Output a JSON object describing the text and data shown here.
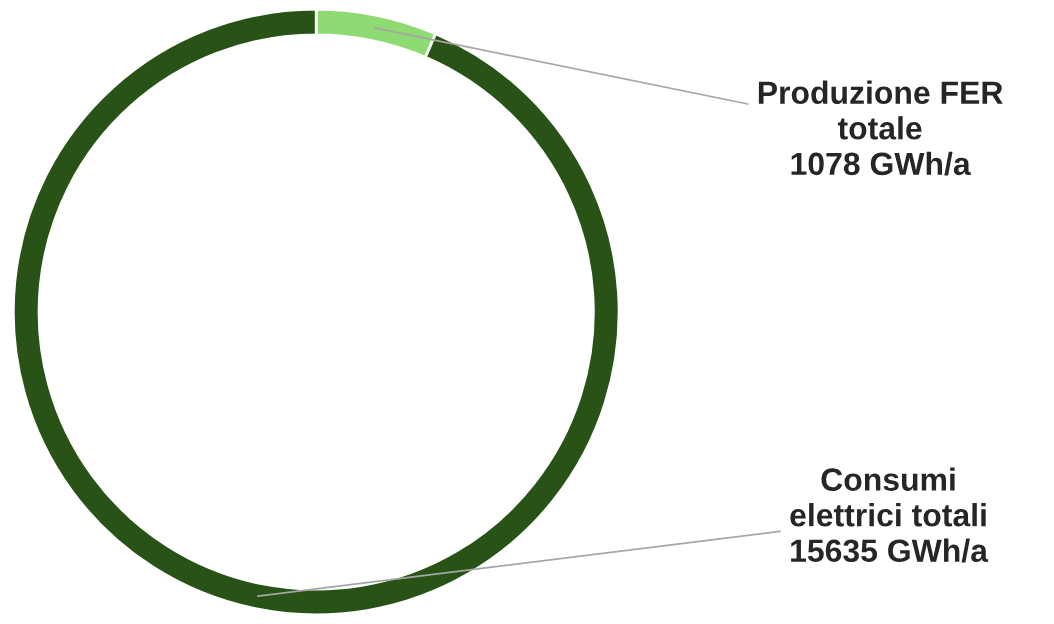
{
  "chart_data": {
    "type": "donut",
    "categories": [
      "Produzione FER\ntotale",
      "Consumi\nelettrici totali"
    ],
    "values": [
      1078,
      15635
    ],
    "value_labels": [
      "1078 GWh/a",
      "15635 GWh/a"
    ],
    "colors": [
      "#8fdb73",
      "#285216"
    ],
    "legend": false
  }
}
